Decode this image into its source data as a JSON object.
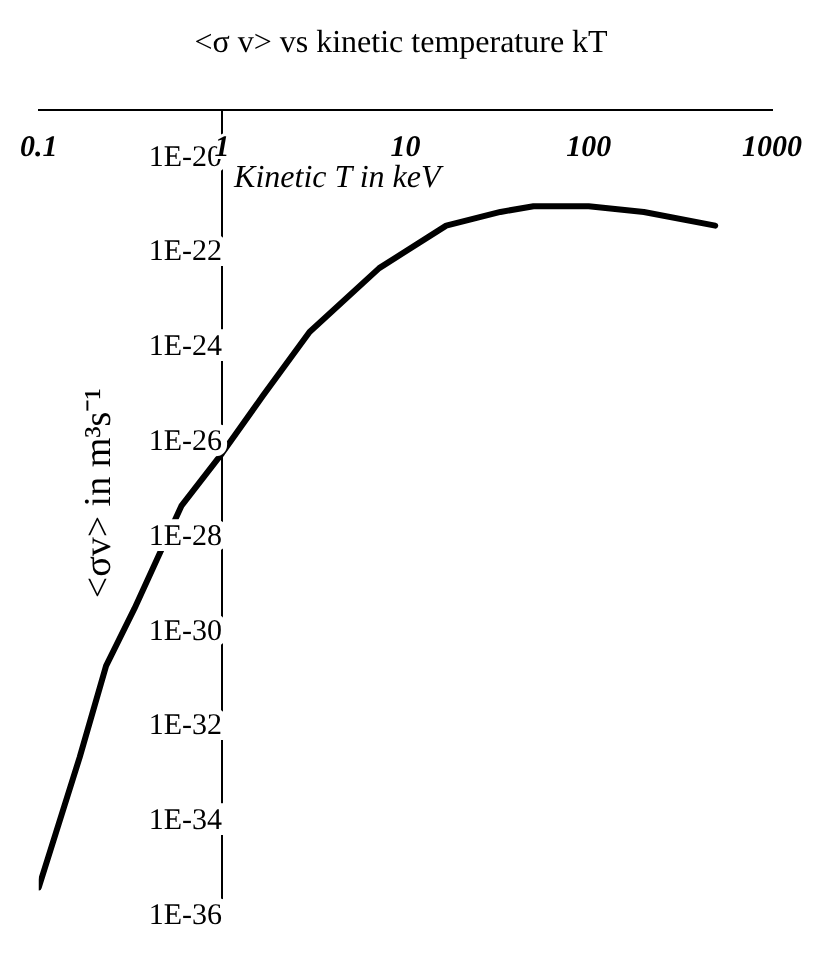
{
  "chart_data": {
    "type": "line",
    "title": "<σ v> vs kinetic temperature kT",
    "xlabel": "Kinetic T in keV",
    "ylabel": "<σv> in m³s⁻¹",
    "log": "xy",
    "x": [
      0.1,
      0.167,
      0.233,
      0.333,
      0.6,
      1,
      1.67,
      3,
      7.2,
      16.7,
      33,
      50,
      100,
      200,
      490
    ],
    "series": [
      {
        "color": "#000000",
        "values": [
          4e-36,
          2.2e-33,
          1.9e-31,
          3.1e-30,
          4.5e-28,
          5.8e-27,
          9.5e-26,
          2.1e-24,
          4.7e-23,
          3.7e-22,
          7.2e-22,
          9.5e-22,
          9.5e-22,
          7.2e-22,
          3.7e-22
        ]
      }
    ],
    "xlim": [
      0.1,
      1000
    ],
    "xticks": [
      0.1,
      1,
      10,
      100,
      1000
    ],
    "ylim": [
      1e-36,
      1e-19
    ],
    "yticks": [
      {
        "value": 1e-36,
        "label": "1E-36"
      },
      {
        "value": 1e-34,
        "label": "1E-34"
      },
      {
        "value": 1e-32,
        "label": "1E-32"
      },
      {
        "value": 1e-30,
        "label": "1E-30"
      },
      {
        "value": 1e-28,
        "label": "1E-28"
      },
      {
        "value": 1e-26,
        "label": "1E-26"
      },
      {
        "value": 1e-24,
        "label": "1E-24"
      },
      {
        "value": 1e-22,
        "label": "1E-22"
      },
      {
        "value": 1e-20,
        "label": "1E-20"
      }
    ],
    "grid": false,
    "legend": false,
    "marker": "none",
    "line_style": "solid"
  }
}
